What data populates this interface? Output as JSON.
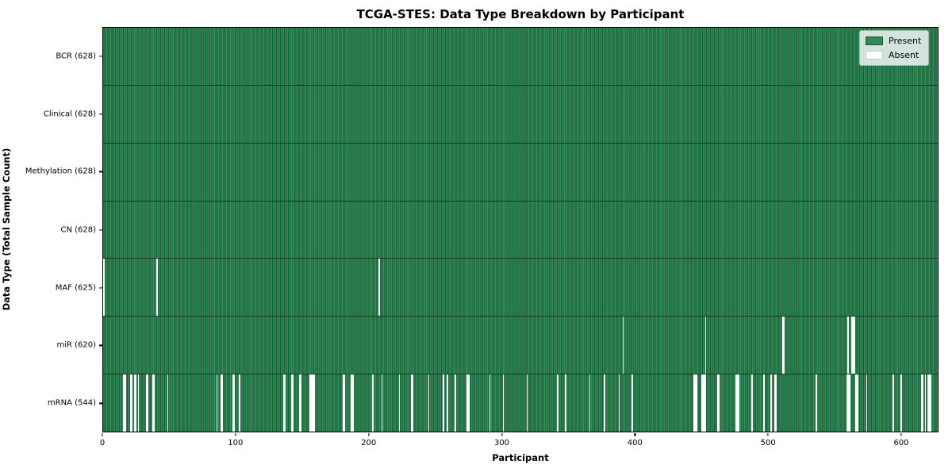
{
  "window": {
    "title": "TCGA-STES: Data Type Breakdown by Participant"
  },
  "chart_data": {
    "type": "heatmap",
    "title": "TCGA-STES: Data Type Breakdown by Participant",
    "xlabel": "Participant",
    "ylabel": "Data Type (Total Sample Count)",
    "xlim": [
      0,
      628
    ],
    "n_participants": 628,
    "x_ticks": [
      0,
      100,
      200,
      300,
      400,
      500,
      600
    ],
    "grid": false,
    "legend_position": "upper right",
    "colors": {
      "present": "#2e8b57",
      "absent": "#ffffff",
      "bar_edge": "#1c5836"
    },
    "legend": [
      {
        "label": "Present",
        "color": "#2e8b57",
        "edge": "#1d5737"
      },
      {
        "label": "Absent",
        "color": "#ffffff",
        "edge": "#c8c8c8"
      }
    ],
    "rows": [
      {
        "data_type": "BCR",
        "label": "BCR (628)",
        "present_count": 628,
        "absent_participants": []
      },
      {
        "data_type": "Clinical",
        "label": "Clinical (628)",
        "present_count": 628,
        "absent_participants": []
      },
      {
        "data_type": "Methylation",
        "label": "Methylation (628)",
        "present_count": 628,
        "absent_participants": []
      },
      {
        "data_type": "CN",
        "label": "CN (628)",
        "present_count": 628,
        "absent_participants": []
      },
      {
        "data_type": "MAF",
        "label": "MAF (625)",
        "present_count": 625,
        "absent_participants": [
          0,
          40,
          207
        ]
      },
      {
        "data_type": "miR",
        "label": "miR (620)",
        "present_count": 620,
        "absent_participants": [
          390,
          452,
          510,
          511,
          559,
          562,
          563,
          564
        ]
      },
      {
        "data_type": "mRNA",
        "label": "mRNA (544)",
        "present_count": 544,
        "absent_participants": [
          15,
          16,
          20,
          21,
          23,
          24,
          26,
          32,
          33,
          37,
          38,
          48,
          85,
          88,
          89,
          97,
          98,
          102,
          135,
          136,
          141,
          142,
          147,
          148,
          155,
          156,
          157,
          158,
          180,
          181,
          186,
          187,
          202,
          209,
          222,
          231,
          232,
          244,
          255,
          258,
          264,
          273,
          274,
          290,
          300,
          318,
          341,
          347,
          365,
          376,
          387,
          397,
          443,
          444,
          445,
          449,
          450,
          451,
          452,
          461,
          462,
          475,
          476,
          477,
          487,
          496,
          501,
          504,
          505,
          535,
          558,
          559,
          560,
          565,
          566,
          573,
          593,
          599,
          614,
          615,
          617,
          619,
          620,
          621
        ]
      }
    ]
  }
}
